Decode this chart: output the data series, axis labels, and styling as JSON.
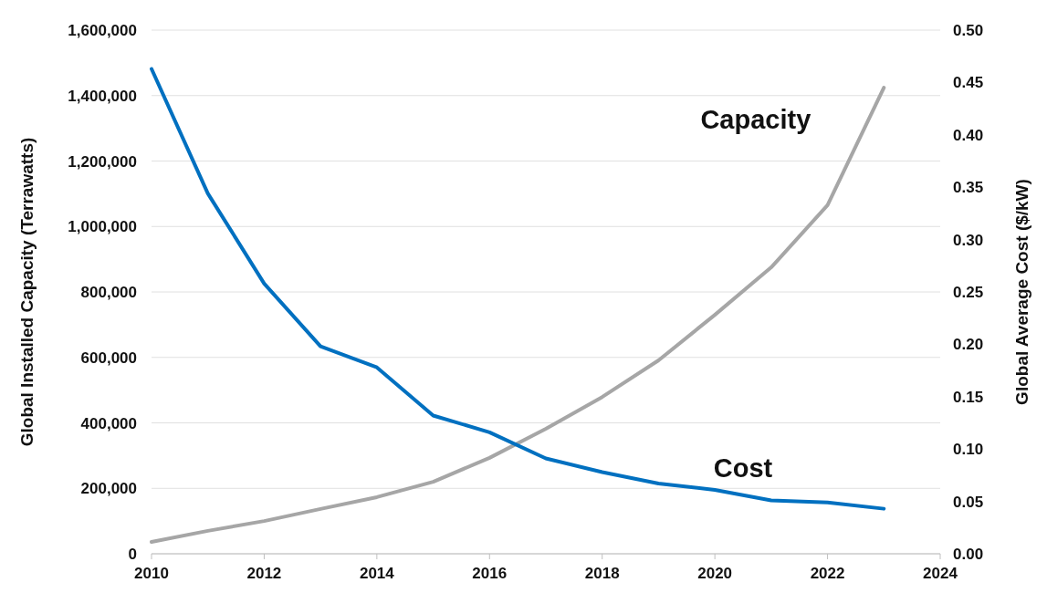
{
  "chart_data": {
    "type": "line",
    "ylabel": "Global Installed Capacity (Terrawatts)",
    "y2label": "Global Average Cost ($/kW)",
    "x": [
      2010,
      2011,
      2012,
      2013,
      2014,
      2015,
      2016,
      2017,
      2018,
      2019,
      2020,
      2021,
      2022,
      2023
    ],
    "series": [
      {
        "name": "Capacity",
        "color": "#a6a6a6",
        "values": [
          36000,
          70000,
          100000,
          137000,
          173000,
          220000,
          293000,
          382000,
          479000,
          591000,
          730000,
          875000,
          1065000,
          1424000
        ]
      },
      {
        "name": "Cost",
        "color": "#0070c0",
        "axis": "y2",
        "values": [
          0.463,
          0.344,
          0.258,
          0.198,
          0.178,
          0.132,
          0.116,
          0.091,
          0.078,
          0.067,
          0.061,
          0.051,
          0.049,
          0.043
        ]
      }
    ],
    "xlim": [
      2010,
      2024
    ],
    "xticks": [
      2010,
      2012,
      2014,
      2016,
      2018,
      2020,
      2022,
      2024
    ],
    "ylim": [
      0,
      1600000
    ],
    "yticks": [
      0,
      {
        "value": 200000,
        "label": "200,000"
      },
      {
        "value": 400000,
        "label": "400,000"
      },
      {
        "value": 600000,
        "label": "600,000"
      },
      {
        "value": 800000,
        "label": "800,000"
      },
      {
        "value": 1000000,
        "label": "1,000,000"
      },
      {
        "value": 1200000,
        "label": "1,200,000"
      },
      {
        "value": 1400000,
        "label": "1,400,000"
      },
      {
        "value": 1600000,
        "label": "1,600,000"
      }
    ],
    "y2lim": [
      0,
      0.5
    ],
    "y2ticks": [
      {
        "value": 0,
        "label": "0.00"
      },
      {
        "value": 0.05,
        "label": "0.05"
      },
      {
        "value": 0.1,
        "label": "0.10"
      },
      {
        "value": 0.15,
        "label": "0.15"
      },
      {
        "value": 0.2,
        "label": "0.20"
      },
      {
        "value": 0.25,
        "label": "0.25"
      },
      {
        "value": 0.3,
        "label": "0.30"
      },
      {
        "value": 0.35,
        "label": "0.35"
      },
      {
        "value": 0.4,
        "label": "0.40"
      },
      {
        "value": 0.45,
        "label": "0.45"
      },
      {
        "value": 0.5,
        "label": "0.50"
      }
    ],
    "grid": "y",
    "marker": "none",
    "line_style": "solid"
  }
}
